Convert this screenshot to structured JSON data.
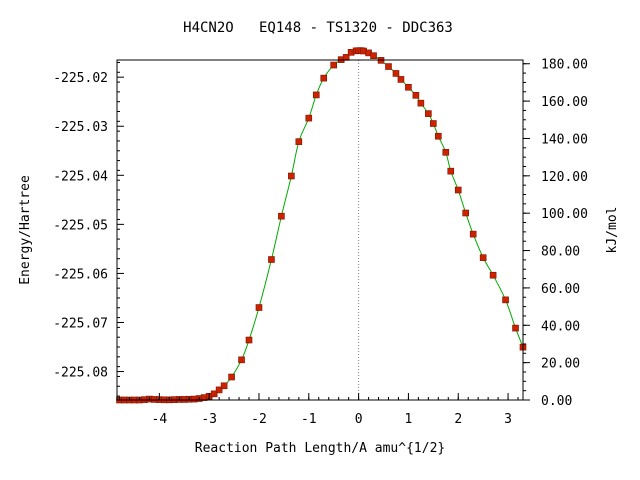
{
  "chart_data": {
    "type": "line",
    "title": "H4CN2O   EQ148 - TS1320 - DDC363",
    "xlabel": "Reaction Path Length/A amu^{1/2}",
    "ylabel_left": "Energy/Hartree",
    "ylabel_right": "kJ/mol",
    "xlim": [
      -4.85,
      3.3
    ],
    "ylim_left": [
      -225.0858,
      -225.0165
    ],
    "ylim_right": [
      0.0,
      182.0
    ],
    "x_ticks": [
      -4,
      -3,
      -2,
      -1,
      0,
      1,
      2,
      3
    ],
    "x_tick_labels": [
      "-4",
      "-3",
      "-2",
      "-1",
      "0",
      "1",
      "2",
      "3"
    ],
    "y_left_ticks": [
      -225.08,
      -225.07,
      -225.06,
      -225.05,
      -225.04,
      -225.03,
      -225.02
    ],
    "y_left_tick_labels": [
      "-225.08",
      "-225.07",
      "-225.06",
      "-225.05",
      "-225.04",
      "-225.03",
      "-225.02"
    ],
    "y_right_ticks": [
      0,
      20,
      40,
      60,
      80,
      100,
      120,
      140,
      160,
      180
    ],
    "y_right_tick_labels": [
      "0.00",
      "20.00",
      "40.00",
      "60.00",
      "80.00",
      "100.00",
      "120.00",
      "140.00",
      "160.00",
      "180.00"
    ],
    "ts_marker_x": 0,
    "grid": false,
    "line_color": "#00aa00",
    "marker_color": "#cc2200",
    "ts_line_color": "#888888",
    "series": [
      {
        "x": [
          -4.8,
          -4.7,
          -4.6,
          -4.5,
          -4.4,
          -4.3,
          -4.2,
          -4.1,
          -4.0,
          -3.9,
          -3.8,
          -3.7,
          -3.6,
          -3.5,
          -3.4,
          -3.3,
          -3.2,
          -3.1,
          -3.0,
          -2.9,
          -2.8,
          -2.7,
          -2.55,
          -2.35,
          -2.2,
          -2.0,
          -1.75,
          -1.55,
          -1.35,
          -1.2,
          -1.0,
          -0.85,
          -0.7,
          -0.5,
          -0.35,
          -0.25,
          -0.15,
          -0.05,
          0.0,
          0.05,
          0.1,
          0.2,
          0.3,
          0.45,
          0.6,
          0.75,
          0.85,
          1.0,
          1.15,
          1.25,
          1.4,
          1.5,
          1.6,
          1.75,
          1.85,
          2.0,
          2.15,
          2.3,
          2.5,
          2.7,
          2.95,
          3.15,
          3.3
        ],
        "y": [
          0.0,
          0.0,
          0.0,
          0.0,
          0.0,
          0.2,
          0.5,
          0.3,
          0.2,
          0.1,
          0.1,
          0.2,
          0.3,
          0.3,
          0.4,
          0.5,
          0.8,
          1.3,
          2.0,
          3.3,
          5.4,
          7.6,
          12.3,
          21.5,
          32.1,
          49.5,
          75.2,
          98.4,
          119.9,
          138.3,
          150.9,
          163.3,
          172.3,
          179.3,
          182.2,
          183.4,
          186.1,
          186.9,
          187.0,
          187.0,
          186.8,
          185.8,
          184.3,
          181.8,
          178.5,
          174.8,
          171.6,
          167.4,
          163.1,
          158.9,
          153.3,
          148.0,
          141.2,
          132.6,
          122.5,
          112.4,
          100.1,
          88.8,
          76.2,
          66.8,
          53.6,
          38.5,
          28.3
        ]
      }
    ]
  }
}
